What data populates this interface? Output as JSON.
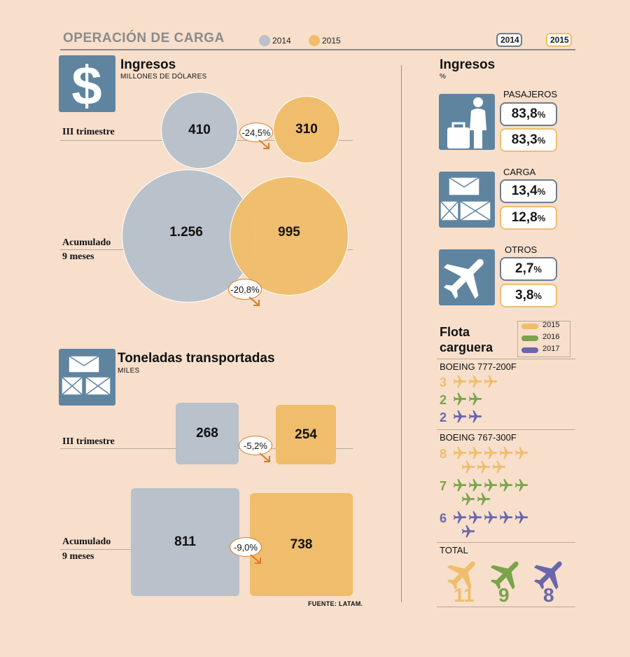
{
  "header": {
    "title": "OPERACIÓN DE CARGA",
    "legend_2014": "2014",
    "legend_2015": "2015",
    "box_2014": "2014",
    "box_2015": "2015"
  },
  "colors": {
    "y2014": "#b9c1ca",
    "y2015": "#f0bd6c",
    "y2016": "#7aa34a",
    "y2017": "#6a66aa",
    "icon": "#5f84a0",
    "arrow": "#d97a2a"
  },
  "ingresos": {
    "title": "Ingresos",
    "subtitle": "MILLONES DE DÓLARES",
    "row1_label": "III trimestre",
    "row2_label_a": "Acumulado",
    "row2_label_b": "9 meses",
    "q3_2014": "410",
    "q3_2015": "310",
    "q3_change": "-24,5%",
    "ytd_2014": "1.256",
    "ytd_2015": "995",
    "ytd_change": "-20,8%"
  },
  "toneladas": {
    "title": "Toneladas transportadas",
    "subtitle": "MILES",
    "row1_label": "III trimestre",
    "row2_label_a": "Acumulado",
    "row2_label_b": "9 meses",
    "q3_2014": "268",
    "q3_2015": "254",
    "q3_change": "-5,2%",
    "ytd_2014": "811",
    "ytd_2015": "738",
    "ytd_change": "-9,0%",
    "source": "FUENTE: LATAM."
  },
  "ingresos_pct": {
    "title": "Ingresos",
    "subtitle": "%",
    "items": [
      {
        "label": "PASAJEROS",
        "v2014": "83,8",
        "v2015": "83,3",
        "icon": "passenger-luggage-icon"
      },
      {
        "label": "CARGA",
        "v2014": "13,4",
        "v2015": "12,8",
        "icon": "envelopes-icon"
      },
      {
        "label": "OTROS",
        "v2014": "2,7",
        "v2015": "3,8",
        "icon": "airplane-icon"
      }
    ],
    "pct_sign": "%"
  },
  "flota": {
    "title_a": "Flota",
    "title_b": "carguera",
    "legend": [
      "2015",
      "2016",
      "2017"
    ],
    "b777_label": "BOEING 777-200F",
    "b777": [
      3,
      2,
      2
    ],
    "b767_label": "BOEING 767-300F",
    "b767": [
      8,
      7,
      6
    ],
    "total_label": "TOTAL",
    "totals": [
      "11",
      "9",
      "8"
    ]
  },
  "chart_data": [
    {
      "type": "bubble",
      "title": "Ingresos",
      "unit": "MILLONES DE DÓLARES",
      "categories": [
        "III trimestre",
        "Acumulado 9 meses"
      ],
      "series": [
        {
          "name": "2014",
          "values": [
            410,
            1256
          ]
        },
        {
          "name": "2015",
          "values": [
            310,
            995
          ]
        }
      ],
      "changes": [
        "-24,5%",
        "-20,8%"
      ]
    },
    {
      "type": "bar",
      "title": "Toneladas transportadas",
      "unit": "MILES",
      "categories": [
        "III trimestre",
        "Acumulado 9 meses"
      ],
      "series": [
        {
          "name": "2014",
          "values": [
            268,
            811
          ]
        },
        {
          "name": "2015",
          "values": [
            254,
            738
          ]
        }
      ],
      "changes": [
        "-5,2%",
        "-9,0%"
      ]
    },
    {
      "type": "table",
      "title": "Ingresos",
      "unit": "%",
      "categories": [
        "PASAJEROS",
        "CARGA",
        "OTROS"
      ],
      "series": [
        {
          "name": "2014",
          "values": [
            83.8,
            13.4,
            2.7
          ]
        },
        {
          "name": "2015",
          "values": [
            83.3,
            12.8,
            3.8
          ]
        }
      ]
    },
    {
      "type": "bar",
      "title": "Flota carguera",
      "categories": [
        "BOEING 777-200F",
        "BOEING 767-300F",
        "TOTAL"
      ],
      "series": [
        {
          "name": "2015",
          "values": [
            3,
            8,
            11
          ]
        },
        {
          "name": "2016",
          "values": [
            2,
            7,
            9
          ]
        },
        {
          "name": "2017",
          "values": [
            2,
            6,
            8
          ]
        }
      ]
    }
  ]
}
